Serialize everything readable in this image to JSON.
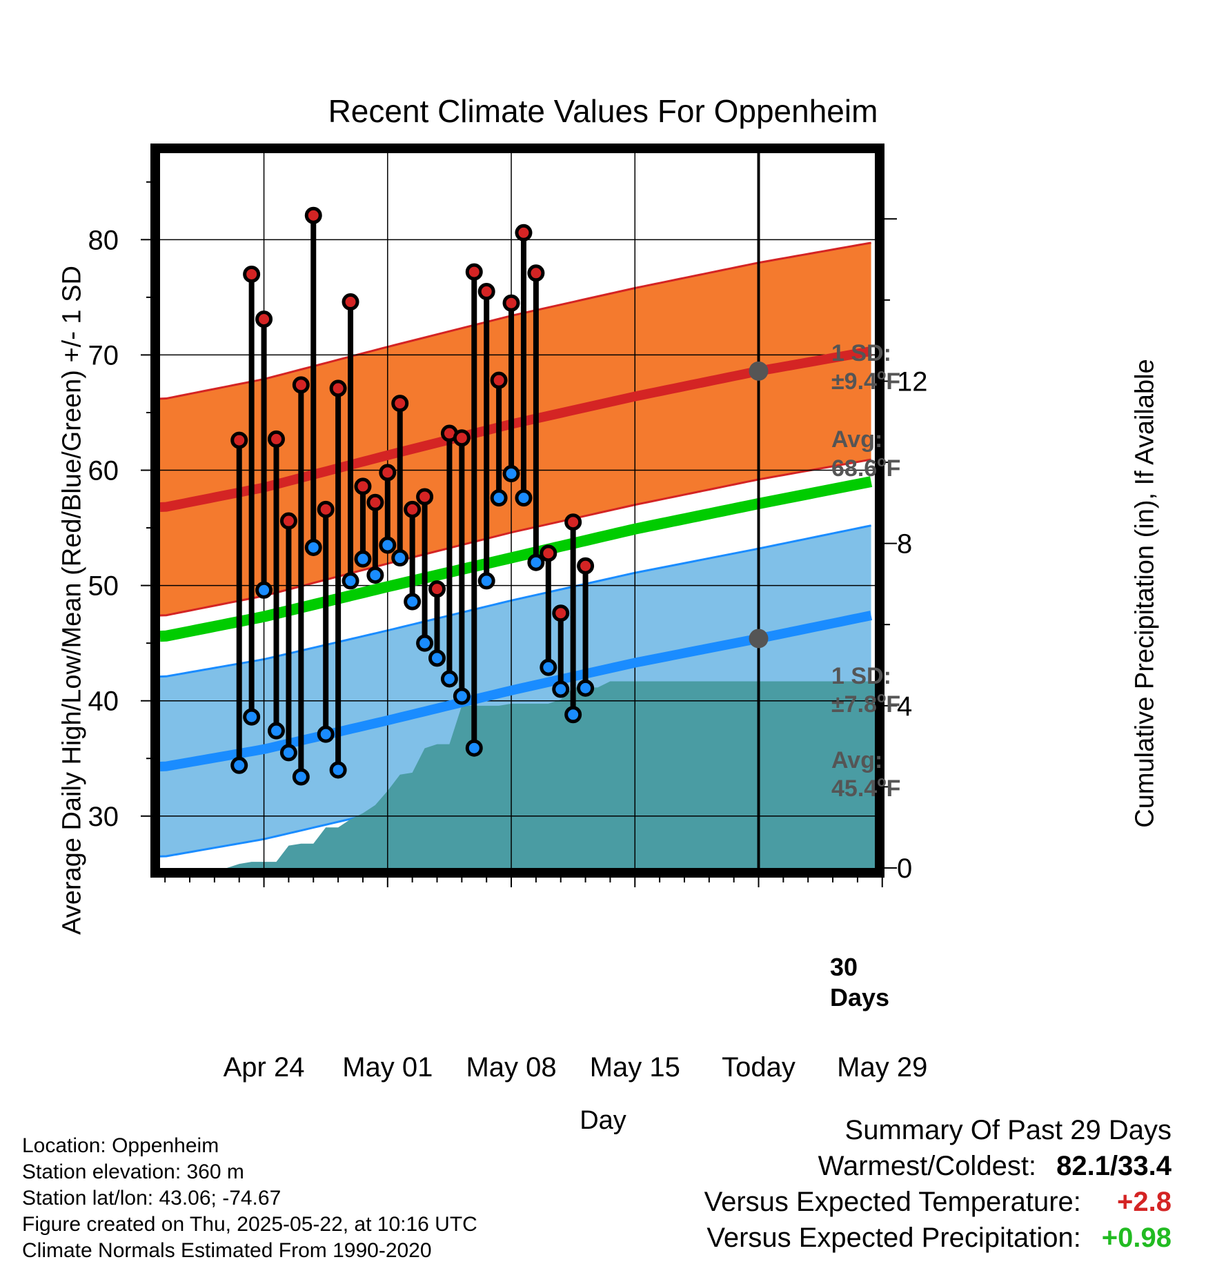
{
  "chart_data": {
    "type": "line",
    "title": "Recent Climate Values For Oppenheim",
    "xlabel": "Day",
    "ylabel": "Average Daily High/Low/Mean (Red/Blue/Green) +/- 1 SD",
    "y2label": "Cumulative Precipitation (in), If Available",
    "ylim": [
      25.5,
      87.5
    ],
    "y2lim": [
      0,
      17.62
    ],
    "xlim": [
      -4.4,
      53.4
    ],
    "yticks": [
      30,
      40,
      50,
      60,
      70,
      80
    ],
    "y2ticks": [
      0,
      4,
      8,
      12
    ],
    "xticks": [
      {
        "day": 4,
        "label": "Apr 24"
      },
      {
        "day": 14,
        "label": "May 01"
      },
      {
        "day": 24,
        "label": "May 08"
      },
      {
        "day": 34,
        "label": "May 15"
      },
      {
        "day": 44,
        "label": "Today"
      },
      {
        "day": 54,
        "label": "May 29"
      }
    ],
    "grid": true,
    "today_day": 44,
    "today_label_line1": "30",
    "today_label_line2": "Days",
    "normals": {
      "high_avg": [
        [
          -4,
          56.8
        ],
        [
          4,
          58.5
        ],
        [
          14,
          61.3
        ],
        [
          24,
          64.0
        ],
        [
          34,
          66.4
        ],
        [
          44,
          68.6
        ],
        [
          54,
          70.5
        ],
        [
          57.5,
          71.1
        ]
      ],
      "high_sd": 9.4,
      "low_avg": [
        [
          -4,
          34.3
        ],
        [
          4,
          35.8
        ],
        [
          14,
          38.3
        ],
        [
          24,
          40.9
        ],
        [
          34,
          43.3
        ],
        [
          44,
          45.4
        ],
        [
          54,
          47.6
        ],
        [
          57.5,
          48.4
        ]
      ],
      "low_sd": 7.8,
      "mean_avg": [
        [
          -4,
          45.6
        ],
        [
          4,
          47.3
        ],
        [
          14,
          49.9
        ],
        [
          24,
          52.4
        ],
        [
          34,
          54.9
        ],
        [
          44,
          57.1
        ],
        [
          54,
          59.2
        ],
        [
          57.5,
          59.8
        ]
      ],
      "high_color": "#d42424",
      "high_band_color": "#f47a2e",
      "low_color": "#1a8cff",
      "low_band_color": "#80c0e8",
      "mean_color": "#00cc00"
    },
    "daily": [
      {
        "day": 2,
        "high": 62.6,
        "low": 34.4
      },
      {
        "day": 3,
        "high": 77.0,
        "low": 38.6
      },
      {
        "day": 4,
        "high": 73.1,
        "low": 49.6
      },
      {
        "day": 5,
        "high": 62.7,
        "low": 37.4
      },
      {
        "day": 6,
        "high": 55.6,
        "low": 35.5
      },
      {
        "day": 7,
        "high": 67.4,
        "low": 33.4
      },
      {
        "day": 8,
        "high": 82.1,
        "low": 53.3
      },
      {
        "day": 9,
        "high": 56.6,
        "low": 37.1
      },
      {
        "day": 10,
        "high": 67.1,
        "low": 34.0
      },
      {
        "day": 11,
        "high": 74.6,
        "low": 50.4
      },
      {
        "day": 12,
        "high": 58.6,
        "low": 52.3
      },
      {
        "day": 13,
        "high": 57.2,
        "low": 50.9
      },
      {
        "day": 14,
        "high": 59.8,
        "low": 53.5
      },
      {
        "day": 15,
        "high": 65.8,
        "low": 52.4
      },
      {
        "day": 16,
        "high": 56.6,
        "low": 48.6
      },
      {
        "day": 17,
        "high": 57.7,
        "low": 45.0
      },
      {
        "day": 18,
        "high": 49.7,
        "low": 43.7
      },
      {
        "day": 19,
        "high": 63.2,
        "low": 41.9
      },
      {
        "day": 20,
        "high": 62.8,
        "low": 40.4
      },
      {
        "day": 21,
        "high": 77.2,
        "low": 35.9
      },
      {
        "day": 22,
        "high": 75.5,
        "low": 50.4
      },
      {
        "day": 23,
        "high": 67.8,
        "low": 57.6
      },
      {
        "day": 24,
        "high": 74.5,
        "low": 59.7
      },
      {
        "day": 25,
        "high": 80.6,
        "low": 57.6
      },
      {
        "day": 26,
        "high": 77.1,
        "low": 52.0
      },
      {
        "day": 27,
        "high": 52.8,
        "low": 42.9
      },
      {
        "day": 28,
        "high": 47.6,
        "low": 41.0
      },
      {
        "day": 29,
        "high": 55.5,
        "low": 38.8
      },
      {
        "day": 30,
        "high": 51.7,
        "low": 41.1
      }
    ],
    "precip_cumulative": [
      [
        1,
        0
      ],
      [
        2,
        0.1
      ],
      [
        3,
        0.15
      ],
      [
        4,
        0.15
      ],
      [
        5,
        0.15
      ],
      [
        6,
        0.55
      ],
      [
        7,
        0.6
      ],
      [
        8,
        0.6
      ],
      [
        9,
        1.0
      ],
      [
        10,
        1.0
      ],
      [
        11,
        1.2
      ],
      [
        12,
        1.35
      ],
      [
        13,
        1.55
      ],
      [
        14,
        1.9
      ],
      [
        15,
        2.3
      ],
      [
        16,
        2.35
      ],
      [
        17,
        2.95
      ],
      [
        18,
        3.05
      ],
      [
        19,
        3.05
      ],
      [
        20,
        4.0
      ],
      [
        21,
        4.0
      ],
      [
        22,
        4.0
      ],
      [
        23,
        4.0
      ],
      [
        24,
        4.05
      ],
      [
        25,
        4.05
      ],
      [
        26,
        4.05
      ],
      [
        27,
        4.05
      ],
      [
        28,
        4.15
      ],
      [
        29,
        4.45
      ],
      [
        30,
        4.45
      ],
      [
        31,
        4.45
      ],
      [
        32,
        4.6
      ],
      [
        33,
        4.6
      ],
      [
        57.5,
        4.6
      ]
    ],
    "precip_color": "#4a9ca3",
    "annotations": {
      "high_sd_label": "1 SD:",
      "high_sd_value": "±9.4",
      "high_avg_label": "Avg:",
      "high_avg_value": "68.6",
      "low_sd_label": "1 SD:",
      "low_sd_value": "±7.8",
      "low_avg_label": "Avg:",
      "low_avg_value": "45.4",
      "degree_mark": "o",
      "unit": "F"
    }
  },
  "footer": {
    "location": "Location: Oppenheim",
    "elevation": "Station elevation: 360 m",
    "latlon": "Station lat/lon: 43.06; -74.67",
    "created": "Figure created on Thu, 2025-05-22, at 10:16 UTC",
    "normals": "Climate Normals Estimated From 1990-2020"
  },
  "summary": {
    "heading": "Summary Of Past 29 Days",
    "warm_cold_label": "Warmest/Coldest:",
    "warm_cold_value": "82.1/33.4",
    "temp_label": "Versus Expected Temperature:",
    "temp_value": "+2.8",
    "temp_color": "#d42424",
    "precip_label": "Versus Expected Precipitation:",
    "precip_value": "+0.98",
    "precip_color": "#22bb22"
  }
}
